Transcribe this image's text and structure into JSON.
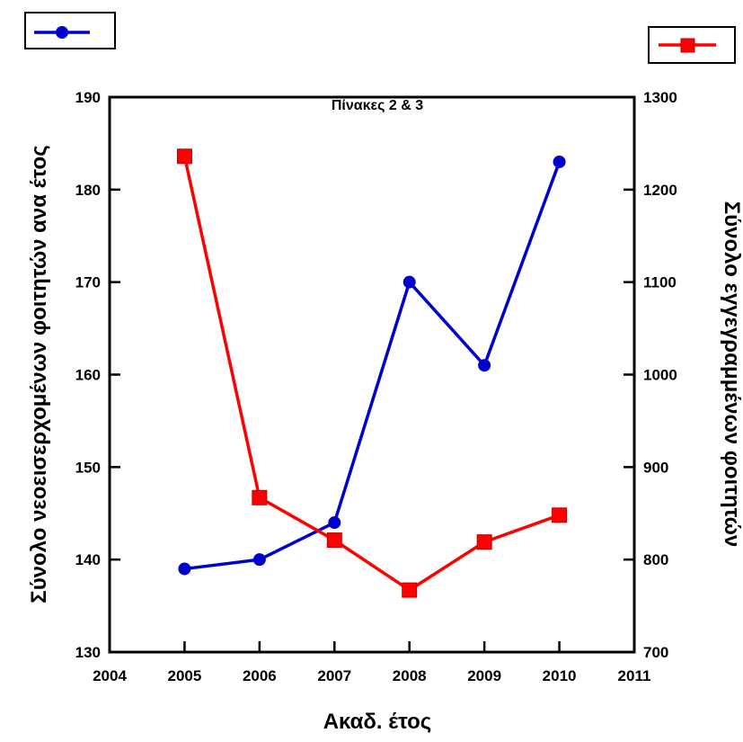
{
  "chart_data": {
    "type": "line",
    "title": "Πίνακες 2 & 3",
    "xlabel": "Ακαδ. έτος",
    "ylabel_left": "Σύνολο νεοεισερχομένων φοιτητών ανα έτος",
    "ylabel_right": "Σύνολο εγγεγραμμένων φοιτητών",
    "x": [
      2005,
      2006,
      2007,
      2008,
      2009,
      2010
    ],
    "xlim": [
      2004,
      2011
    ],
    "x_ticks": [
      2004,
      2005,
      2006,
      2007,
      2008,
      2009,
      2010,
      2011
    ],
    "ylim_left": [
      130,
      190
    ],
    "y_ticks_left": [
      130,
      140,
      150,
      160,
      170,
      180,
      190
    ],
    "ylim_right": [
      700,
      1300
    ],
    "y_ticks_right": [
      700,
      800,
      900,
      1000,
      1100,
      1200,
      1300
    ],
    "grid": false,
    "series": [
      {
        "axis": "left",
        "color": "#0000cc",
        "marker": "circle",
        "values": [
          139,
          140,
          144,
          170,
          161,
          183
        ]
      },
      {
        "axis": "right",
        "color": "#ff0000",
        "marker": "square",
        "values": [
          1236,
          867,
          821,
          767,
          819,
          848
        ]
      }
    ]
  }
}
